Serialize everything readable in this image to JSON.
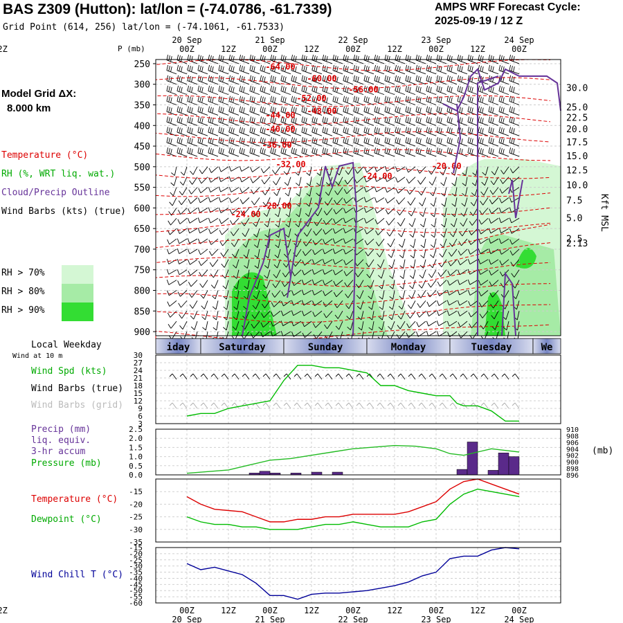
{
  "header": {
    "title": "BAS Z309 (Hutton):  lat/lon = (-74.0786, -61.7339)",
    "subtitle": "Grid Point (614, 256) lat/lon = (-74.1061, -61.7533)",
    "cycle_line1": "AMPS WRF Forecast Cycle:",
    "cycle_line2": "2025-09-19 / 12  Z"
  },
  "left_panel": {
    "grid_line1": "Model Grid ΔX:",
    "grid_line2": "8.000 km",
    "legend_temperature": "Temperature (°C)",
    "legend_rh": "RH (%, WRT liq. wat.)",
    "legend_cloud": "Cloud/Precip Outline",
    "legend_wind": "Wind Barbs (kts) (true)",
    "rh_70": "RH > 70%",
    "rh_80": "RH > 80%",
    "rh_90": "RH > 90%",
    "local_weekday": "Local Weekday",
    "wind_10m": "Wind at 10 m",
    "wind_spd": "Wind Spd (kts)",
    "wind_barbs_true": "Wind Barbs (true)",
    "wind_barbs_grid": "Wind Barbs (grid)",
    "precip_line1": "Precip (mm)",
    "precip_line2": "liq. equiv.",
    "precip_line3": "3-hr accum",
    "pressure_label": "Pressure (mb)",
    "temperature_label": "Temperature (°C)",
    "dewpoint_label": "Dewpoint (°C)",
    "windchill_label": "Wind Chill T (°C)",
    "mb_unit": "(mb)",
    "kft_label": "Kft MSL"
  },
  "colors": {
    "temperature": "#dd0000",
    "dewpoint": "#00bb00",
    "cloud": "#663399",
    "precip": "#5a2a8a",
    "pressure": "#22bb22",
    "windchill": "#000099",
    "rh70": "#d4f7d4",
    "rh80": "#a6eba6",
    "rh90": "#33dd33",
    "grid_barb": "#aaaaaa"
  },
  "chart_data": [
    {
      "type": "heatmap",
      "name": "cross-section",
      "time_ticks": [
        "00Z",
        "12Z",
        "00Z",
        "12Z",
        "00Z",
        "12Z",
        "00Z",
        "12Z",
        "00Z",
        "12Z"
      ],
      "date_labels": [
        "20 Sep",
        "21 Sep",
        "22 Sep",
        "23 Sep",
        "24 Sep"
      ],
      "pressure_axis_title": "P (mb)",
      "pressure_ticks": [
        250,
        300,
        350,
        400,
        450,
        500,
        550,
        600,
        650,
        700,
        750,
        800,
        850,
        900
      ],
      "ylim": [
        240,
        910
      ],
      "height_labels": [
        {
          "p": 308,
          "label": "30.0"
        },
        {
          "p": 355,
          "label": "25.0"
        },
        {
          "p": 380,
          "label": "22.5"
        },
        {
          "p": 408,
          "label": "20.0"
        },
        {
          "p": 440,
          "label": "17.5"
        },
        {
          "p": 473,
          "label": "15.0"
        },
        {
          "p": 508,
          "label": "12.5"
        },
        {
          "p": 544,
          "label": "10.0"
        },
        {
          "p": 581,
          "label": "7.5"
        },
        {
          "p": 624,
          "label": "5.0"
        },
        {
          "p": 674,
          "label": "2.5"
        },
        {
          "p": 685,
          "label": "2.13"
        }
      ],
      "temperature_contour_labels": [
        {
          "t": 27,
          "p": 258,
          "label": "-64.00"
        },
        {
          "t": 39,
          "p": 286,
          "label": "-60.00"
        },
        {
          "t": 51,
          "p": 313,
          "label": "-56.00"
        },
        {
          "t": 36,
          "p": 334,
          "label": "-52.00"
        },
        {
          "t": 39,
          "p": 365,
          "label": "-48.00"
        },
        {
          "t": 27,
          "p": 375,
          "label": "-44.00"
        },
        {
          "t": 27,
          "p": 409,
          "label": "-40.00"
        },
        {
          "t": 26,
          "p": 447,
          "label": "-36.00"
        },
        {
          "t": 30,
          "p": 494,
          "label": "-32.00"
        },
        {
          "t": 55,
          "p": 523,
          "label": "-24.00"
        },
        {
          "t": 75,
          "p": 499,
          "label": "-20.00"
        },
        {
          "t": 26,
          "p": 595,
          "label": "-28.00"
        },
        {
          "t": 17,
          "p": 615,
          "label": "-24.00"
        }
      ],
      "weekdays": [
        "iday",
        "Saturday",
        "Sunday",
        "Monday",
        "Tuesday",
        "We"
      ]
    },
    {
      "type": "line",
      "name": "wind-speed",
      "yticks": [
        30,
        27,
        24,
        21,
        18,
        15,
        12,
        9,
        6,
        3
      ],
      "ylim": [
        3,
        30
      ],
      "series": [
        {
          "name": "Wind Spd (kts)",
          "t": [
            0,
            4,
            8,
            12,
            16,
            20,
            24,
            28,
            32,
            36,
            40,
            44,
            48,
            52,
            56,
            60,
            64,
            68,
            72,
            76,
            78,
            80,
            84,
            88,
            92,
            96
          ],
          "values": [
            6,
            7,
            7,
            9,
            10,
            11,
            12,
            20,
            26,
            26,
            25,
            25,
            24,
            23,
            18,
            18,
            16,
            15,
            14,
            14,
            11,
            10,
            10,
            8,
            4,
            4
          ]
        }
      ]
    },
    {
      "type": "bar",
      "name": "precip-pressure",
      "yticks_left": [
        2.5,
        2.0,
        1.5,
        1.0,
        0.5,
        0.0
      ],
      "ylim_left": [
        0,
        2.5
      ],
      "yticks_right": [
        910,
        908,
        906,
        904,
        902,
        900,
        898,
        896
      ],
      "ylim_right": [
        896,
        910
      ],
      "precip": {
        "t": [
          18,
          21,
          24,
          30,
          36,
          42,
          78,
          81,
          87,
          90,
          93
        ],
        "values": [
          0.1,
          0.2,
          0.1,
          0.1,
          0.15,
          0.15,
          0.3,
          1.8,
          0.25,
          1.2,
          1.0
        ]
      },
      "pressure": {
        "t": [
          0,
          6,
          12,
          18,
          24,
          30,
          36,
          42,
          48,
          54,
          60,
          66,
          72,
          76,
          80,
          84,
          88,
          92,
          96
        ],
        "values": [
          896.5,
          897,
          897.5,
          899,
          900.5,
          901,
          902,
          903,
          904,
          904.5,
          905,
          904.8,
          904,
          902.5,
          902,
          903,
          904,
          903.5,
          903
        ]
      }
    },
    {
      "type": "line",
      "name": "temperature-dewpoint",
      "yticks": [
        -15,
        -20,
        -25,
        -30,
        -35
      ],
      "ylim": [
        -35,
        -10
      ],
      "series": [
        {
          "name": "Temperature (°C)",
          "t": [
            0,
            4,
            8,
            12,
            16,
            20,
            24,
            28,
            32,
            36,
            40,
            44,
            48,
            52,
            56,
            60,
            64,
            68,
            72,
            76,
            80,
            84,
            88,
            92,
            96
          ],
          "values": [
            -17,
            -20,
            -22,
            -22.5,
            -23,
            -25,
            -27,
            -27,
            -26,
            -26,
            -25,
            -25,
            -24,
            -24,
            -24,
            -24,
            -23,
            -21,
            -19,
            -14,
            -11,
            -10,
            -12,
            -14,
            -16
          ]
        },
        {
          "name": "Dewpoint (°C)",
          "t": [
            0,
            4,
            8,
            12,
            16,
            20,
            24,
            28,
            32,
            36,
            40,
            44,
            48,
            52,
            56,
            60,
            64,
            68,
            72,
            76,
            80,
            84,
            88,
            92,
            96
          ],
          "values": [
            -25,
            -27,
            -28,
            -28,
            -29,
            -29,
            -30,
            -30,
            -30,
            -29,
            -28,
            -28,
            -27,
            -28,
            -29,
            -29,
            -29,
            -27,
            -26,
            -20,
            -16,
            -14,
            -15,
            -16,
            -17
          ]
        }
      ]
    },
    {
      "type": "line",
      "name": "wind-chill",
      "yticks": [
        -15,
        -20,
        -25,
        -30,
        -35,
        -40,
        -45,
        -50,
        -55,
        -60
      ],
      "ylim": [
        -60,
        -15
      ],
      "series": [
        {
          "name": "Wind Chill T (°C)",
          "t": [
            0,
            4,
            8,
            12,
            16,
            20,
            24,
            28,
            32,
            36,
            40,
            44,
            48,
            52,
            56,
            60,
            64,
            68,
            72,
            76,
            80,
            84,
            88,
            92,
            96
          ],
          "values": [
            -28,
            -33,
            -31,
            -34,
            -37,
            -44,
            -54,
            -54,
            -57,
            -53,
            -52,
            -52,
            -51,
            -50,
            -48,
            -46,
            -43,
            -38,
            -35,
            -24,
            -22,
            -22,
            -17,
            -15,
            -16
          ]
        }
      ]
    }
  ]
}
